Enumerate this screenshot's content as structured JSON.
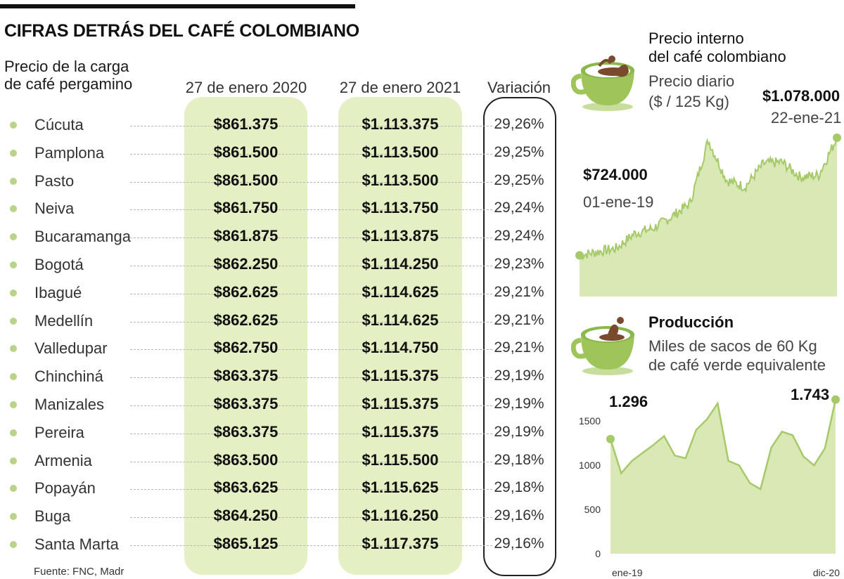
{
  "title": "CIFRAS DETRÁS DEL CAFÉ COLOMBIANO",
  "table": {
    "subtitle_line1": "Precio de la carga",
    "subtitle_line2": "de café pergamino",
    "col_2020": "27 de enero 2020",
    "col_2021": "27 de enero 2021",
    "col_var": "Variación",
    "rows": [
      {
        "city": "Cúcuta",
        "v2020": "$861.375",
        "v2021": "$1.113.375",
        "var": "29,26%"
      },
      {
        "city": "Pamplona",
        "v2020": "$861.500",
        "v2021": "$1.113.500",
        "var": "29,25%"
      },
      {
        "city": "Pasto",
        "v2020": "$861.500",
        "v2021": "$1.113.500",
        "var": "29,25%"
      },
      {
        "city": "Neiva",
        "v2020": "$861.750",
        "v2021": "$1.113.750",
        "var": "29,24%"
      },
      {
        "city": "Bucaramanga",
        "v2020": "$861.875",
        "v2021": "$1.113.875",
        "var": "29,24%"
      },
      {
        "city": "Bogotá",
        "v2020": "$862.250",
        "v2021": "$1.114.250",
        "var": "29,23%"
      },
      {
        "city": "Ibagué",
        "v2020": "$862.625",
        "v2021": "$1.114.625",
        "var": "29,21%"
      },
      {
        "city": "Medellín",
        "v2020": "$862.625",
        "v2021": "$1.114.625",
        "var": "29,21%"
      },
      {
        "city": "Valledupar",
        "v2020": "$862.750",
        "v2021": "$1.114.750",
        "var": "29,21%"
      },
      {
        "city": "Chinchiná",
        "v2020": "$863.375",
        "v2021": "$1.115.375",
        "var": "29,19%"
      },
      {
        "city": "Manizales",
        "v2020": "$863.375",
        "v2021": "$1.115.375",
        "var": "29,19%"
      },
      {
        "city": "Pereira",
        "v2020": "$863.375",
        "v2021": "$1.115.375",
        "var": "29,19%"
      },
      {
        "city": "Armenia",
        "v2020": "$863.500",
        "v2021": "$1.115.500",
        "var": "29,18%"
      },
      {
        "city": "Popayán",
        "v2020": "$863.625",
        "v2021": "$1.115.625",
        "var": "29,18%"
      },
      {
        "city": "Buga",
        "v2020": "$864.250",
        "v2021": "$1.116.250",
        "var": "29,16%"
      },
      {
        "city": "Santa Marta",
        "v2020": "$865.125",
        "v2021": "$1.117.375",
        "var": "29,16%"
      }
    ],
    "source": "Fuente: FNC, Madr"
  },
  "colors": {
    "accent_green": "#e4efc3",
    "area_fill": "#d9e8b4",
    "line": "#a6c96a",
    "dot": "#b9d48a",
    "cup": "#9fc55a",
    "coffee": "#7a4a2e"
  },
  "chart_data": [
    {
      "type": "area",
      "title_line1": "Precio interno",
      "title_line2": "del café colombiano",
      "subtitle_line1": "Precio diario",
      "subtitle_line2": "($ / 125 Kg)",
      "start_value_label": "$724.000",
      "start_date_label": "01-ene-19",
      "peak_value_label": "$1.078.000",
      "peak_date_label": "22-ene-21",
      "x": [
        "2019-01",
        "2019-03",
        "2019-05",
        "2019-07",
        "2019-09",
        "2019-11",
        "2020-01",
        "2020-03",
        "2020-04",
        "2020-05",
        "2020-07",
        "2020-09",
        "2020-10",
        "2020-11",
        "2021-01"
      ],
      "values": [
        724000,
        735000,
        745000,
        790000,
        805000,
        840000,
        880000,
        1070000,
        950000,
        930000,
        1000000,
        1005000,
        960000,
        965000,
        1078000
      ],
      "ylim": [
        600000,
        1150000
      ],
      "grid": false
    },
    {
      "type": "area",
      "title": "Producción",
      "subtitle_line1": "Miles de sacos de 60 Kg",
      "subtitle_line2": "de café verde equivalente",
      "x_tick_labels": [
        "ene-19",
        "dic-20"
      ],
      "y_ticks": [
        0,
        500,
        1000,
        1500
      ],
      "start_value_label": "1.296",
      "end_value_label": "1.743",
      "values": [
        1296,
        910,
        1050,
        1140,
        1230,
        1330,
        1110,
        1080,
        1400,
        1520,
        1700,
        1050,
        1000,
        800,
        730,
        1200,
        1380,
        1340,
        1100,
        1000,
        1190,
        1743
      ],
      "ylim": [
        0,
        1780
      ],
      "grid": false
    }
  ]
}
